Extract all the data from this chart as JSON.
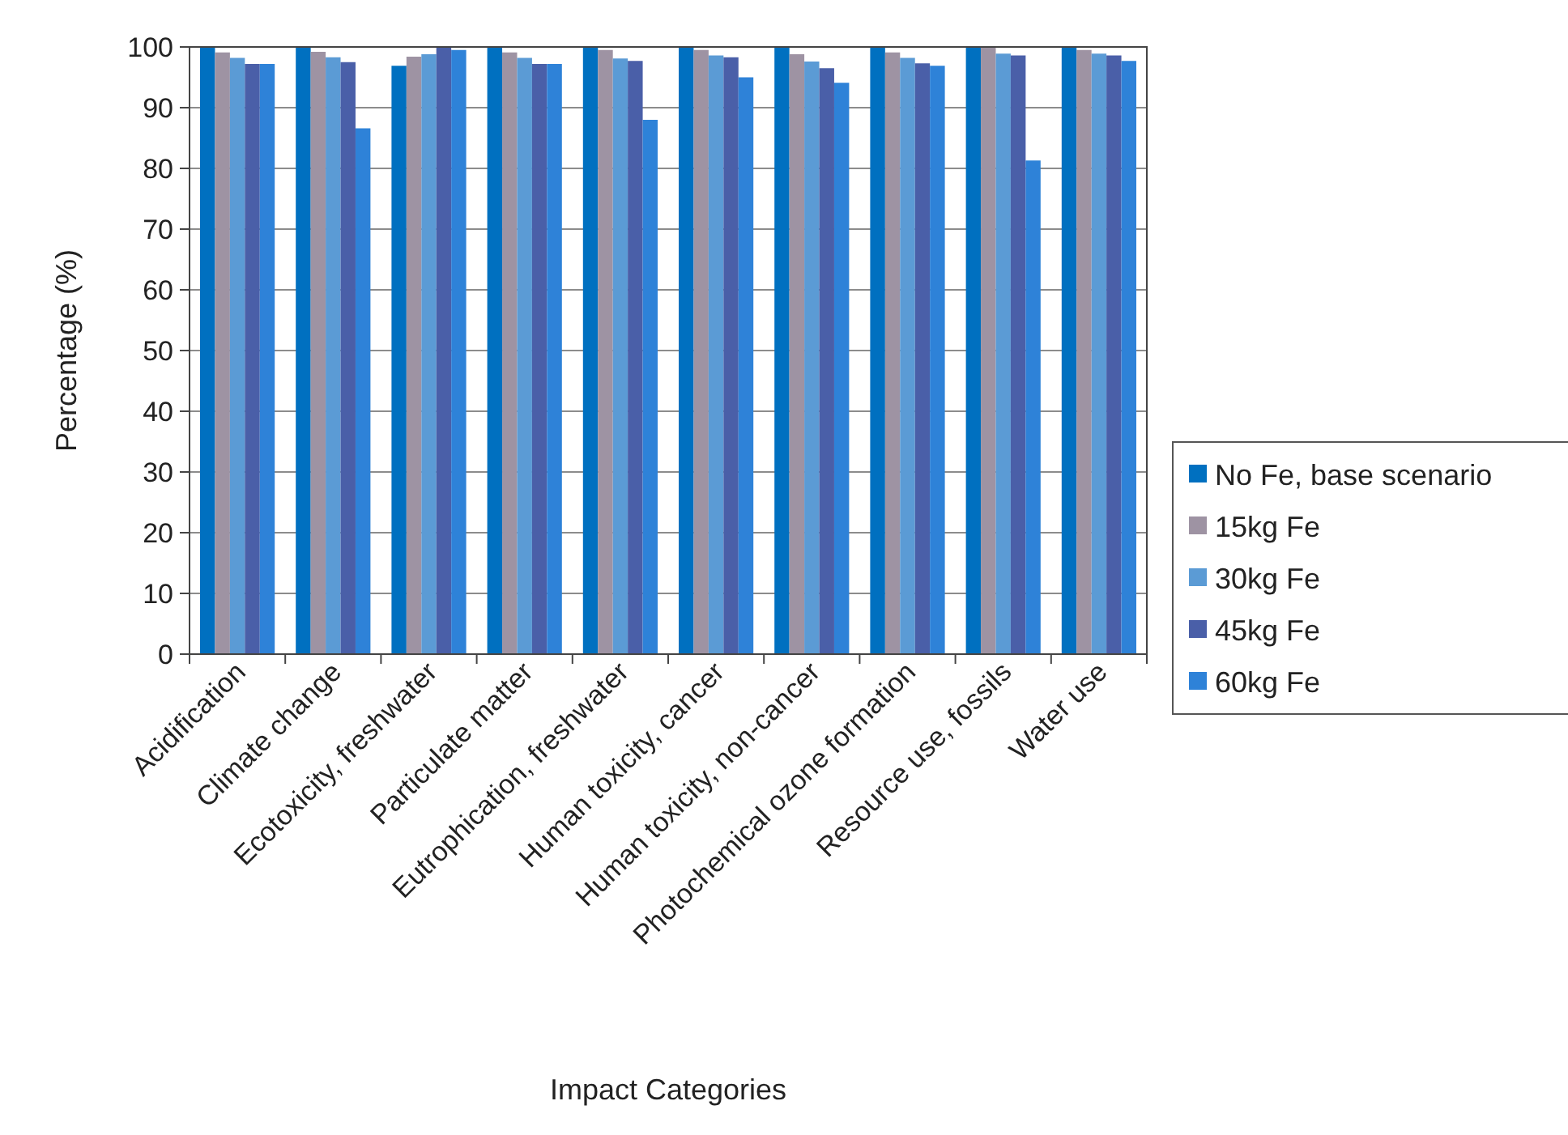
{
  "chart_data": {
    "type": "bar",
    "xlabel": "Impact Categories",
    "ylabel": "Percentage (%)",
    "categories": [
      "Acidification",
      "Climate change",
      "Ecotoxicity, freshwater",
      "Particulate matter",
      "Eutrophication, freshwater",
      "Human toxicity, cancer",
      "Human toxicity, non-cancer",
      "Photochemical ozone formation",
      "Resource use, fossils",
      "Water use"
    ],
    "series": [
      {
        "name": "No Fe, base scenario",
        "color": "#0070c0",
        "values": [
          100,
          100,
          96.9,
          100,
          100,
          100,
          100,
          100,
          100,
          100
        ]
      },
      {
        "name": "15kg Fe",
        "color": "#9e93a3",
        "values": [
          99.1,
          99.2,
          98.4,
          99.1,
          99.5,
          99.5,
          98.8,
          99.1,
          100,
          99.5
        ]
      },
      {
        "name": "30kg Fe",
        "color": "#5b9bd5",
        "values": [
          98.2,
          98.3,
          98.8,
          98.2,
          98.1,
          98.6,
          97.6,
          98.2,
          98.9,
          98.9
        ]
      },
      {
        "name": "45kg Fe",
        "color": "#4a5fa8",
        "values": [
          97.2,
          97.5,
          100,
          97.2,
          97.7,
          98.3,
          96.5,
          97.3,
          98.6,
          98.6
        ]
      },
      {
        "name": "60kg Fe",
        "color": "#2e82d8",
        "values": [
          97.2,
          86.6,
          99.5,
          97.2,
          88.0,
          95.0,
          94.1,
          96.9,
          81.3,
          97.7
        ]
      }
    ],
    "ylim": [
      0,
      100
    ],
    "yticks": [
      0,
      10,
      20,
      30,
      40,
      50,
      60,
      70,
      80,
      90,
      100
    ],
    "grid": "y",
    "legend": "right"
  }
}
